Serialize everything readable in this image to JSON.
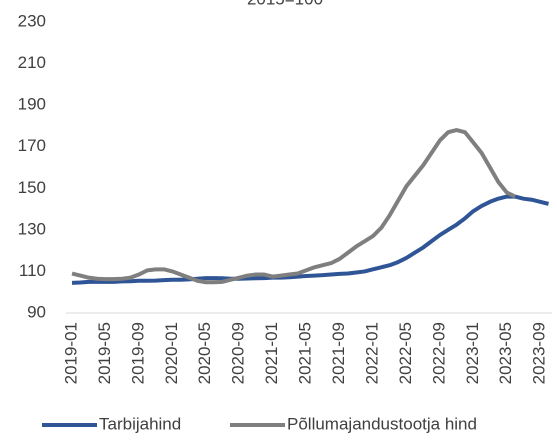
{
  "chart_data": {
    "type": "line",
    "title": "2015=100",
    "categories": [
      "2019-01",
      null,
      null,
      null,
      "2019-05",
      null,
      null,
      null,
      "2019-09",
      null,
      null,
      null,
      "2020-01",
      null,
      null,
      null,
      "2020-05",
      null,
      null,
      null,
      "2020-09",
      null,
      null,
      null,
      "2021-01",
      null,
      null,
      null,
      "2021-05",
      null,
      null,
      null,
      "2021-09",
      null,
      null,
      null,
      "2022-01",
      null,
      null,
      null,
      "2022-05",
      null,
      null,
      null,
      "2022-09",
      null,
      null,
      null,
      "2023-01",
      null,
      null,
      null,
      "2023-05",
      null,
      null,
      null,
      "2023-09",
      null
    ],
    "series": [
      {
        "name": "Tarbijahind",
        "color": "#2f5597",
        "values": [
          104.5,
          104.7,
          105,
          105,
          105,
          105,
          105.2,
          105.3,
          105.5,
          105.5,
          105.6,
          105.8,
          106,
          106,
          106.2,
          106.5,
          106.8,
          106.8,
          106.7,
          106.5,
          106.5,
          106.6,
          106.7,
          106.8,
          107,
          107,
          107.2,
          107.5,
          107.8,
          108,
          108.2,
          108.5,
          108.8,
          109,
          109.5,
          110,
          111,
          112,
          113,
          114.5,
          116.5,
          119,
          121.5,
          124.5,
          127.5,
          130,
          132.5,
          135.5,
          139,
          141.5,
          143.5,
          145,
          146,
          146,
          145,
          144.5,
          143.5,
          142.5
        ]
      },
      {
        "name": "Põllumajandustootja hind",
        "color": "#7f7f7f",
        "values": [
          109,
          108,
          107,
          106.5,
          106.3,
          106.3,
          106.5,
          107,
          108.5,
          110.5,
          111,
          111,
          110,
          108.5,
          107,
          105.5,
          104.8,
          104.8,
          105,
          106,
          107,
          108,
          108.5,
          108.5,
          107.5,
          108,
          108.5,
          109,
          110.5,
          112,
          113,
          114,
          116,
          119,
          122,
          124.5,
          127,
          131,
          137,
          144,
          151,
          156,
          161,
          167,
          173,
          177,
          178,
          177,
          172,
          167,
          160,
          153,
          148,
          146,
          null,
          null,
          null,
          null
        ]
      }
    ],
    "ylim": [
      90,
      230
    ],
    "yticks": [
      90,
      110,
      130,
      150,
      170,
      190,
      210,
      230
    ],
    "legend": "bottom"
  }
}
